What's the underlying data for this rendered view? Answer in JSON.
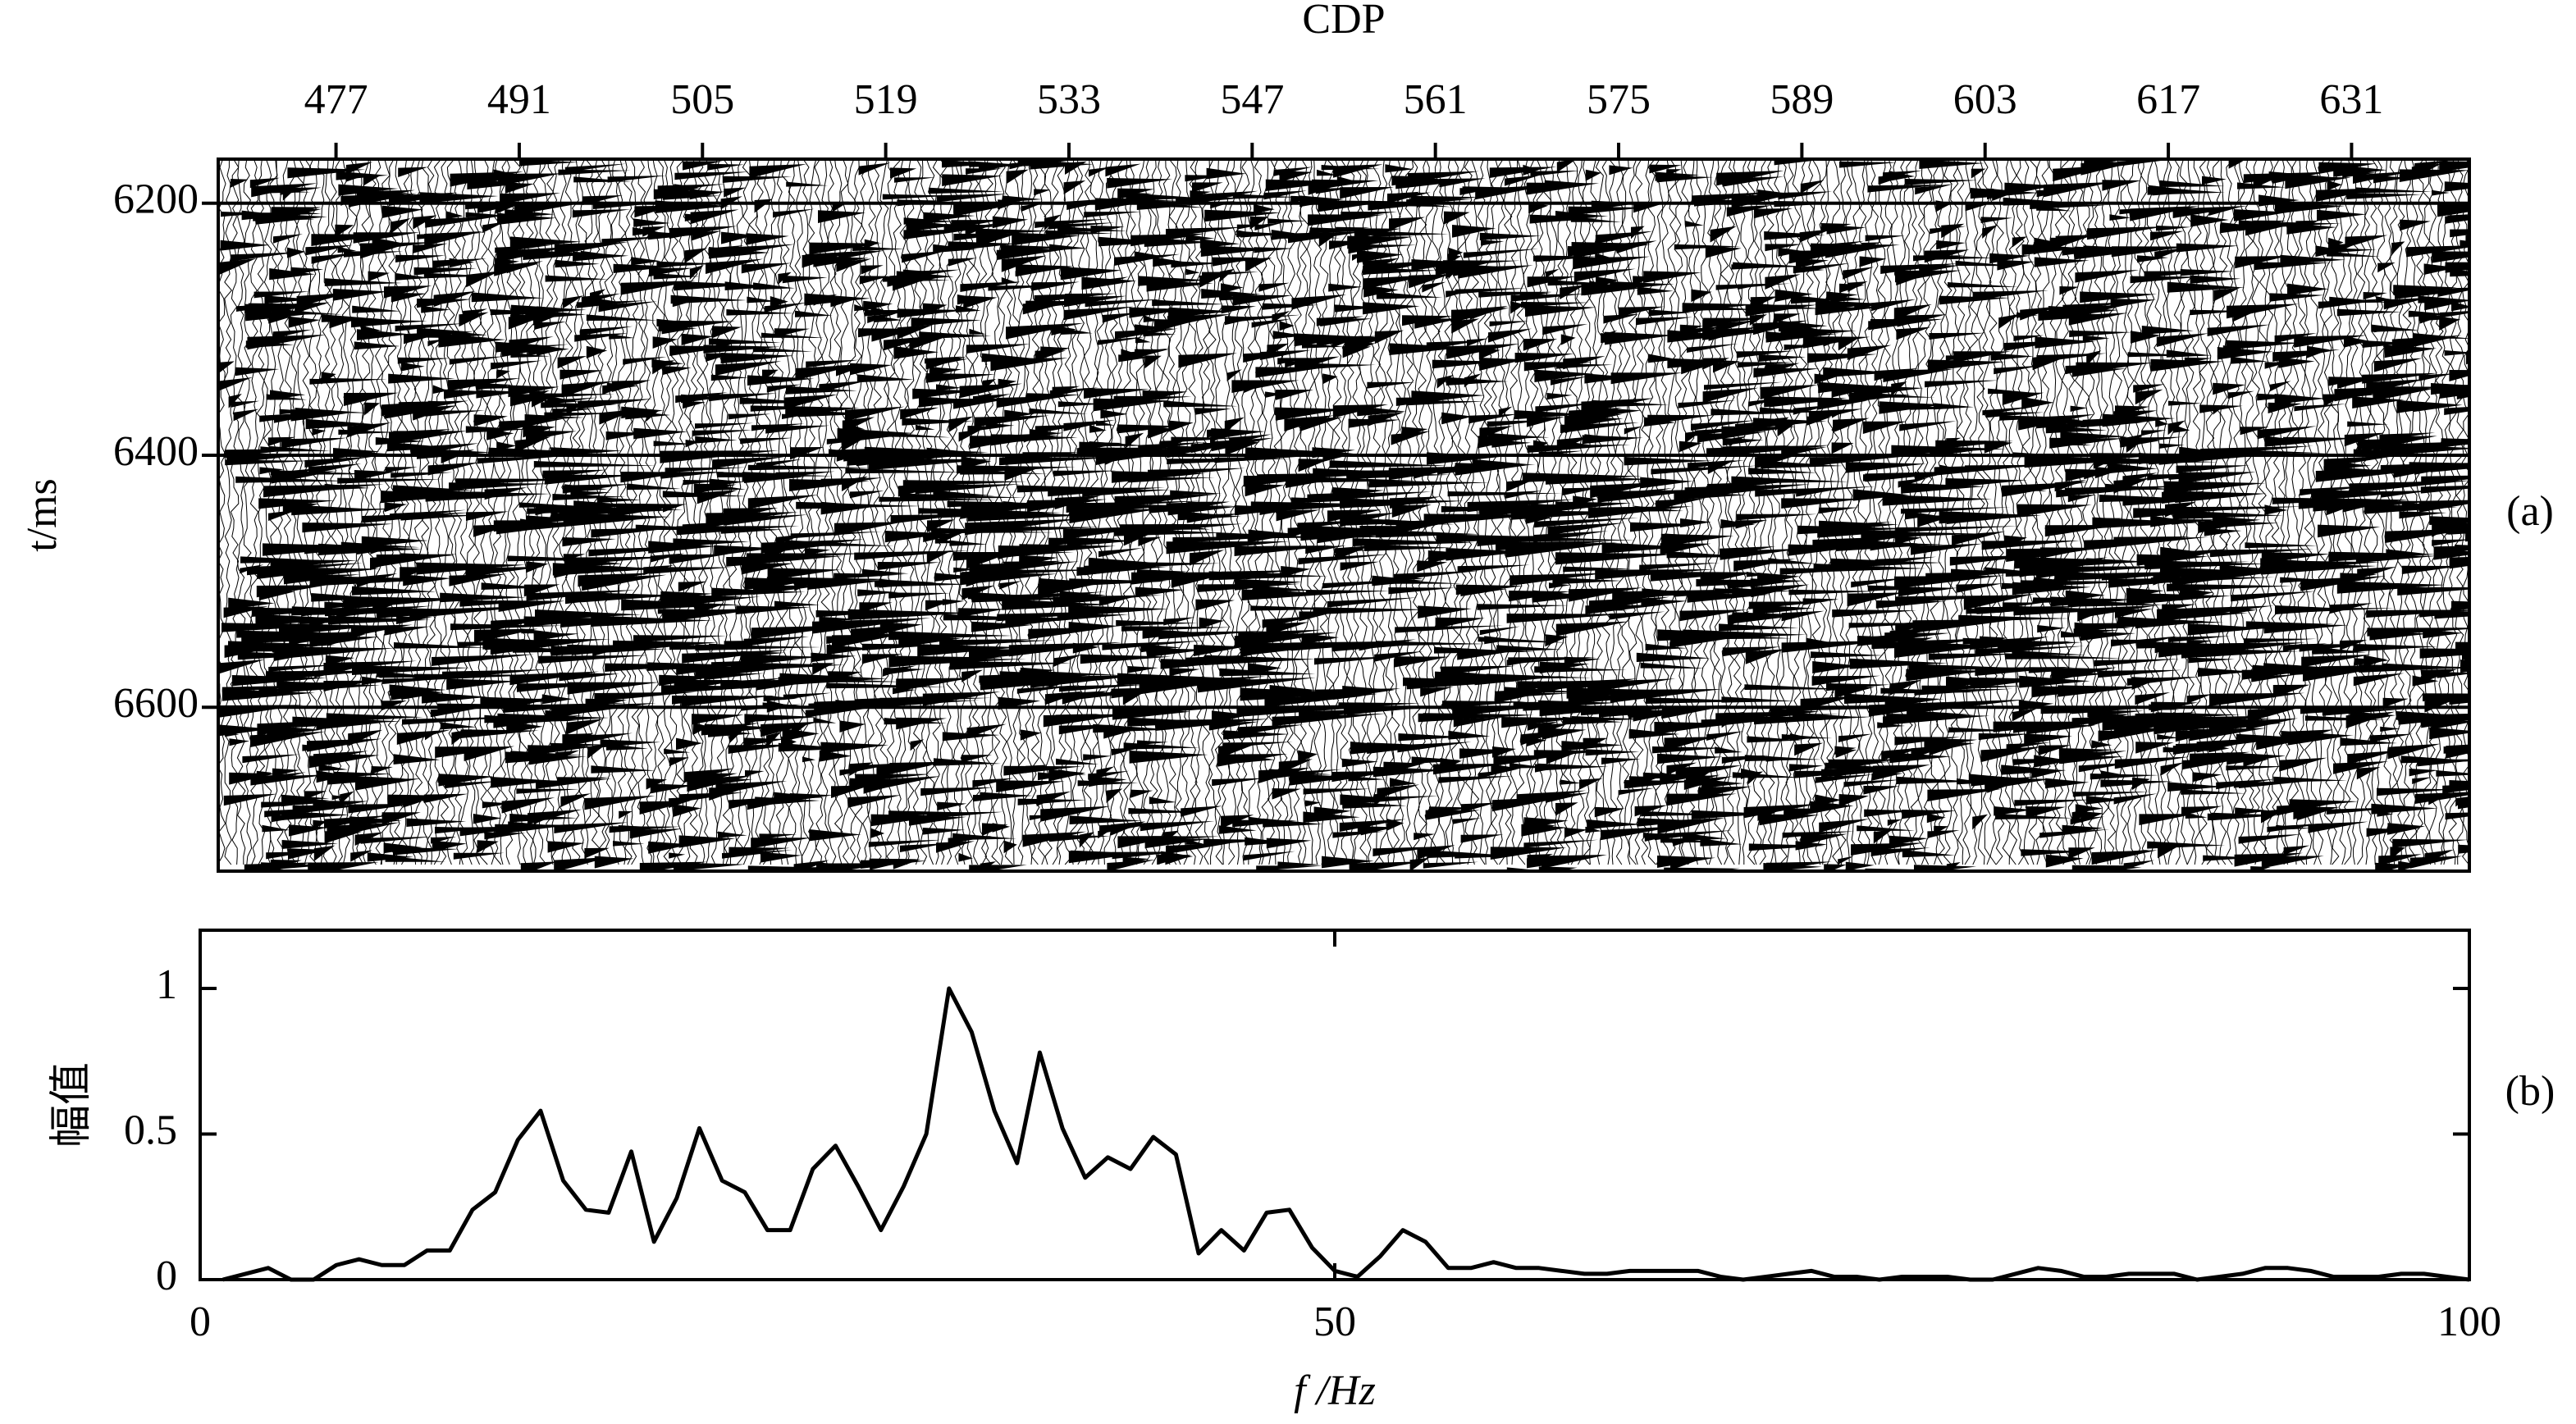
{
  "chart_data": [
    {
      "type": "seismic",
      "x_label": "CDP",
      "y_label": "t/ms",
      "panel_label": "(a)",
      "xlim": [
        468,
        640
      ],
      "xticks": [
        477,
        491,
        505,
        519,
        533,
        547,
        561,
        575,
        589,
        603,
        617,
        631
      ],
      "ylim": [
        6165,
        6730
      ],
      "yticks": [
        6200,
        6400,
        6600
      ],
      "y_inverted": true,
      "grid": true
    },
    {
      "type": "line",
      "x_label": "f /Hz",
      "y_label": "幅值",
      "panel_label": "(b)",
      "color": "#000000",
      "x": [
        1,
        2,
        3,
        4,
        5,
        6,
        7,
        8,
        9,
        10,
        11,
        12,
        13,
        14,
        15,
        16,
        17,
        18,
        19,
        20,
        21,
        22,
        23,
        24,
        25,
        26,
        27,
        28,
        29,
        30,
        31,
        32,
        33,
        34,
        35,
        36,
        37,
        38,
        39,
        40,
        41,
        42,
        43,
        44,
        45,
        46,
        47,
        48,
        49,
        50,
        51,
        52,
        53,
        54,
        55,
        56,
        57,
        58,
        59,
        60,
        61,
        62,
        63,
        64,
        65,
        66,
        67,
        68,
        69,
        70,
        71,
        72,
        73,
        74,
        75,
        76,
        77,
        78,
        79,
        80,
        81,
        82,
        83,
        84,
        85,
        86,
        87,
        88,
        89,
        90,
        91,
        92,
        93,
        94,
        95,
        96,
        97,
        98,
        99,
        100
      ],
      "values": [
        0,
        0.02,
        0.04,
        0,
        0,
        0.05,
        0.07,
        0.05,
        0.05,
        0.1,
        0.1,
        0.24,
        0.3,
        0.48,
        0.58,
        0.34,
        0.24,
        0.23,
        0.44,
        0.13,
        0.28,
        0.52,
        0.34,
        0.3,
        0.17,
        0.17,
        0.38,
        0.46,
        0.32,
        0.17,
        0.32,
        0.5,
        1,
        0.85,
        0.58,
        0.4,
        0.78,
        0.52,
        0.35,
        0.42,
        0.38,
        0.49,
        0.43,
        0.09,
        0.17,
        0.1,
        0.23,
        0.24,
        0.11,
        0.03,
        0.01,
        0.08,
        0.17,
        0.13,
        0.04,
        0.04,
        0.06,
        0.04,
        0.04,
        0.03,
        0.02,
        0.02,
        0.03,
        0.03,
        0.03,
        0.03,
        0.01,
        0,
        0.01,
        0.02,
        0.03,
        0.01,
        0.01,
        0,
        0.01,
        0.01,
        0.01,
        0,
        0,
        0.02,
        0.04,
        0.03,
        0.01,
        0.01,
        0.02,
        0.02,
        0.02,
        0,
        0.01,
        0.02,
        0.04,
        0.04,
        0.03,
        0.01,
        0.01,
        0.01,
        0.02,
        0.02,
        0.01,
        0
      ],
      "xlim": [
        0,
        100
      ],
      "xticks": [
        0,
        50,
        100
      ],
      "ylim": [
        0,
        1.2
      ],
      "yticks": [
        0,
        0.5,
        1
      ]
    }
  ]
}
